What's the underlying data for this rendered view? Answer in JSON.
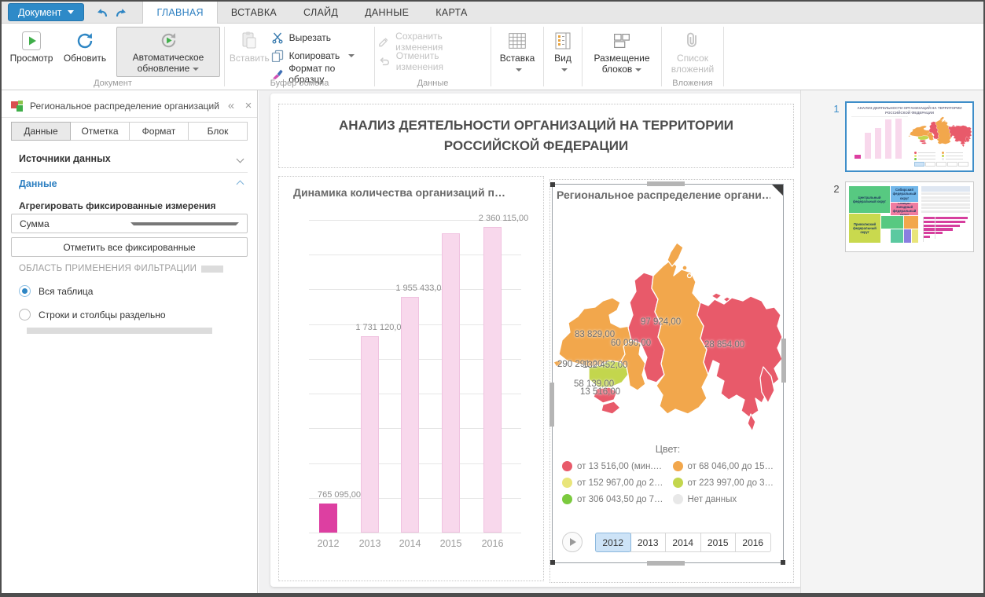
{
  "menubar": {
    "document_button": "Документ",
    "tabs": [
      {
        "label": "ГЛАВНАЯ",
        "active": true
      },
      {
        "label": "ВСТАВКА",
        "active": false
      },
      {
        "label": "СЛАЙД",
        "active": false
      },
      {
        "label": "ДАННЫЕ",
        "active": false
      },
      {
        "label": "КАРТА",
        "active": false
      }
    ]
  },
  "ribbon": {
    "buttons": {
      "preview": "Просмотр",
      "refresh": "Обновить",
      "auto_refresh": "Автоматическое обновление",
      "paste": "Вставить",
      "cut": "Вырезать",
      "copy": "Копировать",
      "format_painter": "Формат по образцу",
      "save_changes": "Сохранить изменения",
      "discard_changes": "Отменить изменения",
      "insert": "Вставка",
      "view": "Вид",
      "block_layout": "Размещение блоков",
      "attachments_list": "Список вложений"
    },
    "group_labels": {
      "document": "Документ",
      "clipboard": "Буфер обмена",
      "data": "Данные",
      "attachments": "Вложения"
    }
  },
  "left_panel": {
    "title": "Региональное распределение организаций",
    "tabs": [
      {
        "label": "Данные",
        "active": true
      },
      {
        "label": "Отметка",
        "active": false
      },
      {
        "label": "Формат",
        "active": false
      },
      {
        "label": "Блок",
        "active": false
      }
    ],
    "section_data_sources": "Источники данных",
    "section_data": "Данные",
    "aggregate_label": "Агрегировать фиксированные измерения",
    "aggregate_value": "Сумма",
    "mark_all_button": "Отметить все фиксированные",
    "filter_scope_label": "ОБЛАСТЬ ПРИМЕНЕНИЯ ФИЛЬТРАЦИИ",
    "radios": [
      {
        "label": "Вся таблица",
        "selected": true
      },
      {
        "label": "Строки и столбцы раздельно",
        "selected": false
      }
    ]
  },
  "slide": {
    "title": "АНАЛИЗ ДЕЯТЕЛЬНОСТИ ОРГАНИЗАЦИЙ НА ТЕРРИТОРИИ РОССИЙСКОЙ ФЕДЕРАЦИИ"
  },
  "chart_data": [
    {
      "type": "bar",
      "title": "Динамика количества организаций п…",
      "categories": [
        "2012",
        "2013",
        "2014",
        "2015",
        "2016"
      ],
      "values": [
        765095,
        1731120,
        1955433,
        2325000,
        2360115
      ],
      "data_labels": [
        "765 095,00",
        "1 731 120,00",
        "1 955 433,00",
        "",
        "2 360 115,00"
      ],
      "highlighted_category": "2012",
      "ylim": [
        600000,
        2400000
      ],
      "grid": true,
      "bar_color": "#f8d8ec",
      "bar_border_color": "#f0c2e0",
      "highlight_color": "#dd3fa1"
    },
    {
      "type": "choropleth-map",
      "title": "Региональное распределение органи…",
      "region_values": [
        "83 829,00",
        "97 924,00",
        "60 090,00",
        "28 854,00",
        "290 291,00",
        "132 452,00",
        "58 139,00",
        "13 516,00"
      ],
      "legend_title": "Цвет:",
      "legend": [
        {
          "label": "от 13 516,00 (мин.…",
          "color": "#e85a6a"
        },
        {
          "label": "от 68 046,00 до 15…",
          "color": "#f2a74c"
        },
        {
          "label": "от 152 967,00 до 2…",
          "color": "#e9e57a"
        },
        {
          "label": "от 223 997,00 до 3…",
          "color": "#c3d64d"
        },
        {
          "label": "от 306 043,50 до 7…",
          "color": "#7bca3e"
        },
        {
          "label": "Нет данных",
          "color": "#e8e8e8"
        }
      ],
      "years": [
        "2012",
        "2013",
        "2014",
        "2015",
        "2016"
      ],
      "selected_year": "2012",
      "region_colors": {
        "red": "#e85a6a",
        "orange": "#f2a74c",
        "yellow_green": "#c3d64d"
      }
    }
  ],
  "thumbnails": [
    {
      "number": "1",
      "selected": true
    },
    {
      "number": "2",
      "selected": false,
      "treemap_labels": [
        "Центральный федеральный округ",
        "Сибирский федеральный округ",
        "Северо-Западный федеральный округ",
        "Приволжский федеральный округ"
      ]
    }
  ]
}
